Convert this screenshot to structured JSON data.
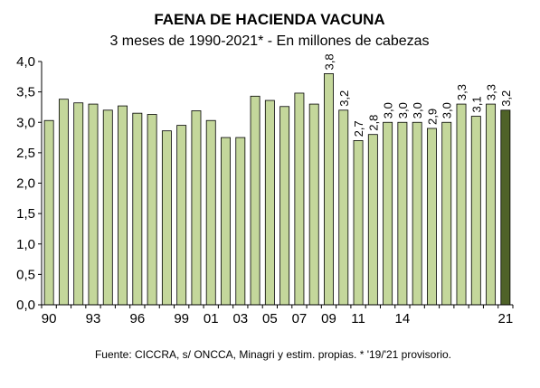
{
  "chart_data": {
    "type": "bar",
    "title": "FAENA DE HACIENDA VACUNA",
    "subtitle": "3 meses de 1990-2021* - En millones de cabezas",
    "source": "Fuente: CICCRA, s/ ONCCA, Minagri y estim. propias. * '19/'21 provisorio.",
    "ylim": [
      0,
      4
    ],
    "yticks": [
      "0,0",
      "0,5",
      "1,0",
      "1,5",
      "2,0",
      "2,5",
      "3,0",
      "3,5",
      "4,0"
    ],
    "grid": false,
    "x_tick_labels": [
      {
        "index": 0,
        "label": "90"
      },
      {
        "index": 3,
        "label": "93"
      },
      {
        "index": 6,
        "label": "96"
      },
      {
        "index": 9,
        "label": "99"
      },
      {
        "index": 11,
        "label": "01"
      },
      {
        "index": 13,
        "label": "03"
      },
      {
        "index": 15,
        "label": "05"
      },
      {
        "index": 17,
        "label": "07"
      },
      {
        "index": 19,
        "label": "09"
      },
      {
        "index": 21,
        "label": "11"
      },
      {
        "index": 24,
        "label": "14"
      },
      {
        "index": 31,
        "label": "21"
      }
    ],
    "categories": [
      "1990",
      "1991",
      "1992",
      "1993",
      "1994",
      "1995",
      "1996",
      "1997",
      "1998",
      "1999",
      "2000",
      "2001",
      "2002",
      "2003",
      "2004",
      "2005",
      "2006",
      "2007",
      "2008",
      "2009",
      "2010",
      "2011",
      "2012",
      "2013",
      "2014",
      "2015",
      "2016",
      "2017",
      "2018",
      "2019",
      "2020",
      "2021"
    ],
    "values": [
      3.03,
      3.38,
      3.32,
      3.3,
      3.2,
      3.27,
      3.15,
      3.13,
      2.86,
      2.95,
      3.19,
      3.03,
      2.75,
      2.75,
      3.43,
      3.36,
      3.26,
      3.48,
      3.3,
      3.8,
      3.2,
      2.7,
      2.8,
      3.0,
      3.0,
      3.0,
      2.9,
      3.0,
      3.3,
      3.1,
      3.3,
      3.2
    ],
    "data_labels": [
      null,
      null,
      null,
      null,
      null,
      null,
      null,
      null,
      null,
      null,
      null,
      null,
      null,
      null,
      null,
      null,
      null,
      null,
      null,
      "3,8",
      "3,2",
      "2,7",
      "2,8",
      "3,0",
      "3,0",
      "3,0",
      "2,9",
      "3,0",
      "3,3",
      "3,1",
      "3,3",
      "3,2"
    ],
    "colors": {
      "bar": "#c4d79b",
      "bar_highlight": "#4f6228",
      "bar_stroke": "#000000"
    },
    "highlight_index": 31
  }
}
